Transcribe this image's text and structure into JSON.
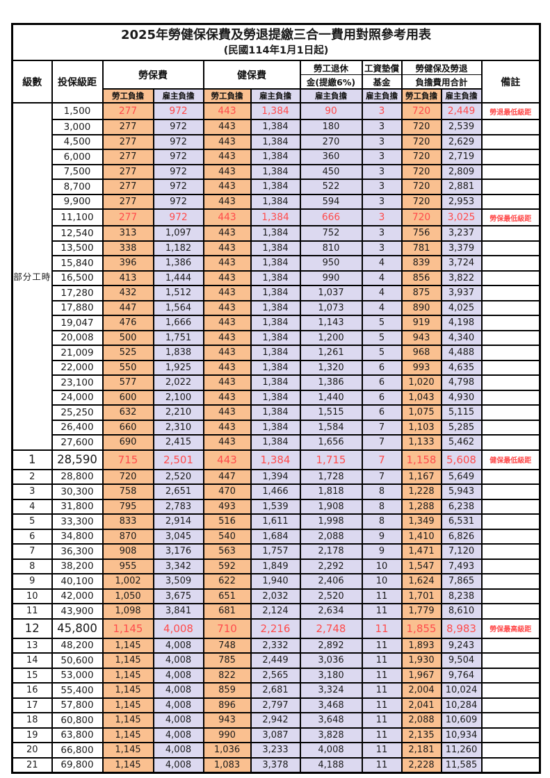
{
  "page": {
    "title": "2025年勞健保保費及勞退提繳三合一費用對照參考用表",
    "subtitle": "(民國114年1月1日起)"
  },
  "colors": {
    "worker_column_bg": "#FAC090",
    "employer_column_bg": "#DCD9F0",
    "highlight_text": "#FF4B4B",
    "border": "#000000"
  },
  "table": {
    "header": {
      "level": "級數",
      "bracket": "投保級距",
      "labor": "勞保費",
      "health": "健保費",
      "pension_line1": "勞工退休",
      "pension_line2": "金(提繳6%)",
      "fund_line1": "工資墊償",
      "fund_line2": "基金",
      "total_line1": "勞健保及勞退",
      "total_line2": "負擔費用合計",
      "remark": "備註",
      "worker": "勞工負擔",
      "employer": "雇主負擔"
    },
    "part_time_label": "部分工時",
    "part_time_rowspan": 23,
    "columns": [
      "level",
      "bracket",
      "labor_worker",
      "labor_employer",
      "health_worker",
      "health_employer",
      "pension_employer",
      "wage_fund_employer",
      "total_worker",
      "total_employer",
      "remark",
      "style"
    ],
    "rows": [
      [
        "",
        "1,500",
        "277",
        "972",
        "443",
        "1,384",
        "90",
        "3",
        "720",
        "2,449",
        "勞退最低級距",
        "red"
      ],
      [
        "",
        "3,000",
        "277",
        "972",
        "443",
        "1,384",
        "180",
        "3",
        "720",
        "2,539",
        "",
        ""
      ],
      [
        "",
        "4,500",
        "277",
        "972",
        "443",
        "1,384",
        "270",
        "3",
        "720",
        "2,629",
        "",
        ""
      ],
      [
        "",
        "6,000",
        "277",
        "972",
        "443",
        "1,384",
        "360",
        "3",
        "720",
        "2,719",
        "",
        ""
      ],
      [
        "",
        "7,500",
        "277",
        "972",
        "443",
        "1,384",
        "450",
        "3",
        "720",
        "2,809",
        "",
        ""
      ],
      [
        "",
        "8,700",
        "277",
        "972",
        "443",
        "1,384",
        "522",
        "3",
        "720",
        "2,881",
        "",
        ""
      ],
      [
        "",
        "9,900",
        "277",
        "972",
        "443",
        "1,384",
        "594",
        "3",
        "720",
        "2,953",
        "",
        ""
      ],
      [
        "",
        "11,100",
        "277",
        "972",
        "443",
        "1,384",
        "666",
        "3",
        "720",
        "3,025",
        "勞保最低級距",
        "red"
      ],
      [
        "",
        "12,540",
        "313",
        "1,097",
        "443",
        "1,384",
        "752",
        "3",
        "756",
        "3,237",
        "",
        ""
      ],
      [
        "",
        "13,500",
        "338",
        "1,182",
        "443",
        "1,384",
        "810",
        "3",
        "781",
        "3,379",
        "",
        ""
      ],
      [
        "",
        "15,840",
        "396",
        "1,386",
        "443",
        "1,384",
        "950",
        "4",
        "839",
        "3,724",
        "",
        ""
      ],
      [
        "",
        "16,500",
        "413",
        "1,444",
        "443",
        "1,384",
        "990",
        "4",
        "856",
        "3,822",
        "",
        ""
      ],
      [
        "",
        "17,280",
        "432",
        "1,512",
        "443",
        "1,384",
        "1,037",
        "4",
        "875",
        "3,937",
        "",
        ""
      ],
      [
        "",
        "17,880",
        "447",
        "1,564",
        "443",
        "1,384",
        "1,073",
        "4",
        "890",
        "4,025",
        "",
        ""
      ],
      [
        "",
        "19,047",
        "476",
        "1,666",
        "443",
        "1,384",
        "1,143",
        "5",
        "919",
        "4,198",
        "",
        ""
      ],
      [
        "",
        "20,008",
        "500",
        "1,751",
        "443",
        "1,384",
        "1,200",
        "5",
        "943",
        "4,340",
        "",
        ""
      ],
      [
        "",
        "21,009",
        "525",
        "1,838",
        "443",
        "1,384",
        "1,261",
        "5",
        "968",
        "4,488",
        "",
        ""
      ],
      [
        "",
        "22,000",
        "550",
        "1,925",
        "443",
        "1,384",
        "1,320",
        "6",
        "993",
        "4,635",
        "",
        ""
      ],
      [
        "",
        "23,100",
        "577",
        "2,022",
        "443",
        "1,384",
        "1,386",
        "6",
        "1,020",
        "4,798",
        "",
        ""
      ],
      [
        "",
        "24,000",
        "600",
        "2,100",
        "443",
        "1,384",
        "1,440",
        "6",
        "1,043",
        "4,930",
        "",
        ""
      ],
      [
        "",
        "25,250",
        "632",
        "2,210",
        "443",
        "1,384",
        "1,515",
        "6",
        "1,075",
        "5,115",
        "",
        ""
      ],
      [
        "",
        "26,400",
        "660",
        "2,310",
        "443",
        "1,384",
        "1,584",
        "7",
        "1,103",
        "5,285",
        "",
        ""
      ],
      [
        "",
        "27,600",
        "690",
        "2,415",
        "443",
        "1,384",
        "1,656",
        "7",
        "1,133",
        "5,462",
        "",
        ""
      ],
      [
        "1",
        "28,590",
        "715",
        "2,501",
        "443",
        "1,384",
        "1,715",
        "7",
        "1,158",
        "5,608",
        "健保最低級距",
        "red-large"
      ],
      [
        "2",
        "28,800",
        "720",
        "2,520",
        "447",
        "1,394",
        "1,728",
        "7",
        "1,167",
        "5,649",
        "",
        ""
      ],
      [
        "3",
        "30,300",
        "758",
        "2,651",
        "470",
        "1,466",
        "1,818",
        "8",
        "1,228",
        "5,943",
        "",
        ""
      ],
      [
        "4",
        "31,800",
        "795",
        "2,783",
        "493",
        "1,539",
        "1,908",
        "8",
        "1,288",
        "6,238",
        "",
        ""
      ],
      [
        "5",
        "33,300",
        "833",
        "2,914",
        "516",
        "1,611",
        "1,998",
        "8",
        "1,349",
        "6,531",
        "",
        ""
      ],
      [
        "6",
        "34,800",
        "870",
        "3,045",
        "540",
        "1,684",
        "2,088",
        "9",
        "1,410",
        "6,826",
        "",
        ""
      ],
      [
        "7",
        "36,300",
        "908",
        "3,176",
        "563",
        "1,757",
        "2,178",
        "9",
        "1,471",
        "7,120",
        "",
        ""
      ],
      [
        "8",
        "38,200",
        "955",
        "3,342",
        "592",
        "1,849",
        "2,292",
        "10",
        "1,547",
        "7,493",
        "",
        ""
      ],
      [
        "9",
        "40,100",
        "1,002",
        "3,509",
        "622",
        "1,940",
        "2,406",
        "10",
        "1,624",
        "7,865",
        "",
        ""
      ],
      [
        "10",
        "42,000",
        "1,050",
        "3,675",
        "651",
        "2,032",
        "2,520",
        "11",
        "1,701",
        "8,238",
        "",
        ""
      ],
      [
        "11",
        "43,900",
        "1,098",
        "3,841",
        "681",
        "2,124",
        "2,634",
        "11",
        "1,779",
        "8,610",
        "",
        ""
      ],
      [
        "12",
        "45,800",
        "1,145",
        "4,008",
        "710",
        "2,216",
        "2,748",
        "11",
        "1,855",
        "8,983",
        "勞保最高級距",
        "red-large"
      ],
      [
        "13",
        "48,200",
        "1,145",
        "4,008",
        "748",
        "2,332",
        "2,892",
        "11",
        "1,893",
        "9,243",
        "",
        ""
      ],
      [
        "14",
        "50,600",
        "1,145",
        "4,008",
        "785",
        "2,449",
        "3,036",
        "11",
        "1,930",
        "9,504",
        "",
        ""
      ],
      [
        "15",
        "53,000",
        "1,145",
        "4,008",
        "822",
        "2,565",
        "3,180",
        "11",
        "1,967",
        "9,764",
        "",
        ""
      ],
      [
        "16",
        "55,400",
        "1,145",
        "4,008",
        "859",
        "2,681",
        "3,324",
        "11",
        "2,004",
        "10,024",
        "",
        ""
      ],
      [
        "17",
        "57,800",
        "1,145",
        "4,008",
        "896",
        "2,797",
        "3,468",
        "11",
        "2,041",
        "10,284",
        "",
        ""
      ],
      [
        "18",
        "60,800",
        "1,145",
        "4,008",
        "943",
        "2,942",
        "3,648",
        "11",
        "2,088",
        "10,609",
        "",
        ""
      ],
      [
        "19",
        "63,800",
        "1,145",
        "4,008",
        "990",
        "3,087",
        "3,828",
        "11",
        "2,135",
        "10,934",
        "",
        ""
      ],
      [
        "20",
        "66,800",
        "1,145",
        "4,008",
        "1,036",
        "3,233",
        "4,008",
        "11",
        "2,181",
        "11,260",
        "",
        ""
      ],
      [
        "21",
        "69,800",
        "1,145",
        "4,008",
        "1,083",
        "3,378",
        "4,188",
        "11",
        "2,228",
        "11,585",
        "",
        ""
      ]
    ]
  }
}
